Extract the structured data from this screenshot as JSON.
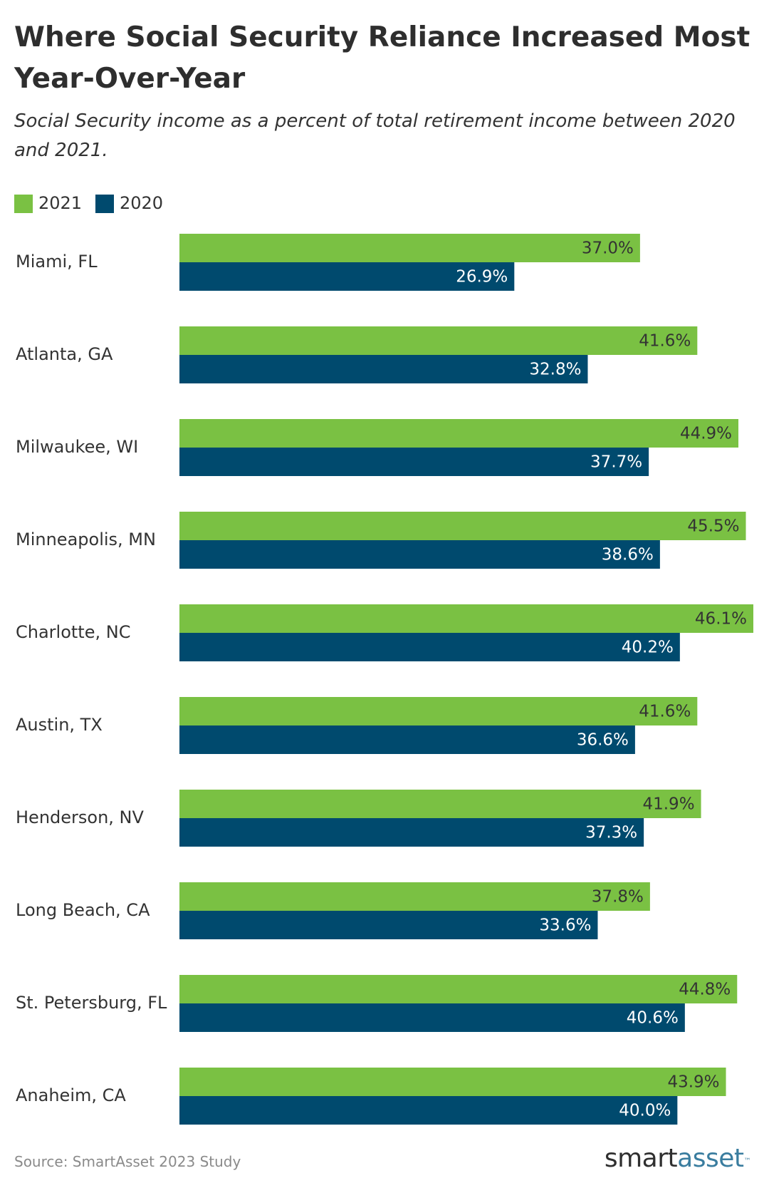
{
  "header": {
    "title": "Where Social Security Reliance Increased Most Year-Over-Year",
    "subtitle": "Social Security income as a percent of total retirement income between 2020 and 2021."
  },
  "legend": [
    {
      "label": "2021",
      "color": "#7ac143"
    },
    {
      "label": "2020",
      "color": "#004a6e"
    }
  ],
  "chart_data": {
    "type": "bar",
    "orientation": "horizontal",
    "title": "Where Social Security Reliance Increased Most Year-Over-Year",
    "subtitle": "Social Security income as a percent of total retirement income between 2020 and 2021.",
    "categories": [
      "Miami, FL",
      "Atlanta, GA",
      "Milwaukee, WI",
      "Minneapolis, MN",
      "Charlotte, NC",
      "Austin, TX",
      "Henderson, NV",
      "Long Beach, CA",
      "St. Petersburg, FL",
      "Anaheim, CA"
    ],
    "series": [
      {
        "name": "2021",
        "color": "#7ac143",
        "label_color": "#333333",
        "values": [
          37.0,
          41.6,
          44.9,
          45.5,
          46.1,
          41.6,
          41.9,
          37.8,
          44.8,
          43.9
        ]
      },
      {
        "name": "2020",
        "color": "#004a6e",
        "label_color": "#ffffff",
        "values": [
          26.9,
          32.8,
          37.7,
          38.6,
          40.2,
          36.6,
          37.3,
          33.6,
          40.6,
          40.0
        ]
      }
    ],
    "value_suffix": "%",
    "xlim": [
      0,
      46.1
    ],
    "xlabel": "",
    "ylabel": "",
    "grid": false,
    "legend_position": "top-left"
  },
  "footer": {
    "source": "Source: SmartAsset 2023 Study",
    "logo_smart": "smart",
    "logo_asset": "asset",
    "logo_tm": "™"
  }
}
